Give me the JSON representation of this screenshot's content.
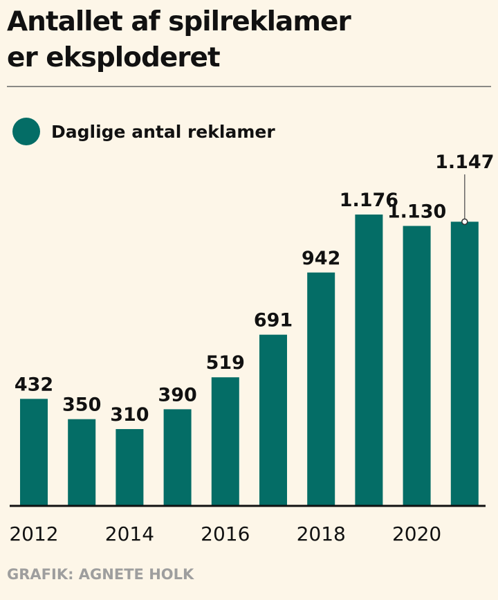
{
  "title_lines": [
    "Antallet af spilreklamer",
    "er eksploderet"
  ],
  "credit": "GRAFIK: AGNETE HOLK",
  "colors": {
    "bar": "#046d66",
    "background": "#fdf6e8"
  },
  "chart_data": {
    "type": "bar",
    "categories": [
      "2012",
      "2013",
      "2014",
      "2015",
      "2016",
      "2017",
      "2018",
      "2019",
      "2020",
      "2021"
    ],
    "series": [
      {
        "name": "Daglige antal reklamer",
        "values": [
          432,
          350,
          310,
          390,
          519,
          691,
          942,
          1176,
          1130,
          1147
        ]
      }
    ],
    "data_labels": [
      "432",
      "350",
      "310",
      "390",
      "519",
      "691",
      "942",
      "1.176",
      "1.130",
      "1.147"
    ],
    "x_tick_labels": [
      "2012",
      "2014",
      "2016",
      "2018",
      "2020"
    ],
    "ylim": [
      0,
      1176
    ],
    "grid": false,
    "legend": "top-left",
    "annotation": "1.147 label placed above with a leader line to the last bar"
  }
}
